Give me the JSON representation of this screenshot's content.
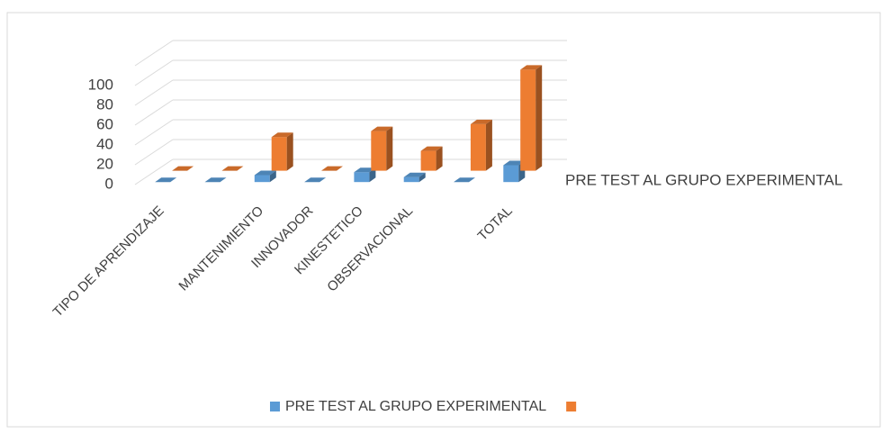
{
  "chart_data": {
    "type": "bar3d",
    "categories": [
      "TIPO DE  APRENDIZAJE",
      null,
      "MANTENIMIENTO",
      "INNOVADOR",
      "KINESTETICO",
      "OBSERVACIONAL",
      null,
      "TOTAL"
    ],
    "series": [
      {
        "name": "PRE TEST AL GRUPO EXPERIMENTAL",
        "color": "#5b9bd5",
        "values": [
          0,
          0,
          7,
          0,
          10,
          5,
          0,
          17
        ]
      },
      {
        "color": "#ed7d31",
        "values": [
          0,
          0,
          34,
          0,
          40,
          20,
          47,
          102
        ]
      }
    ],
    "ylim": [
      0,
      120
    ],
    "yticks": [
      0,
      20,
      40,
      60,
      80,
      100
    ],
    "grid": true
  }
}
